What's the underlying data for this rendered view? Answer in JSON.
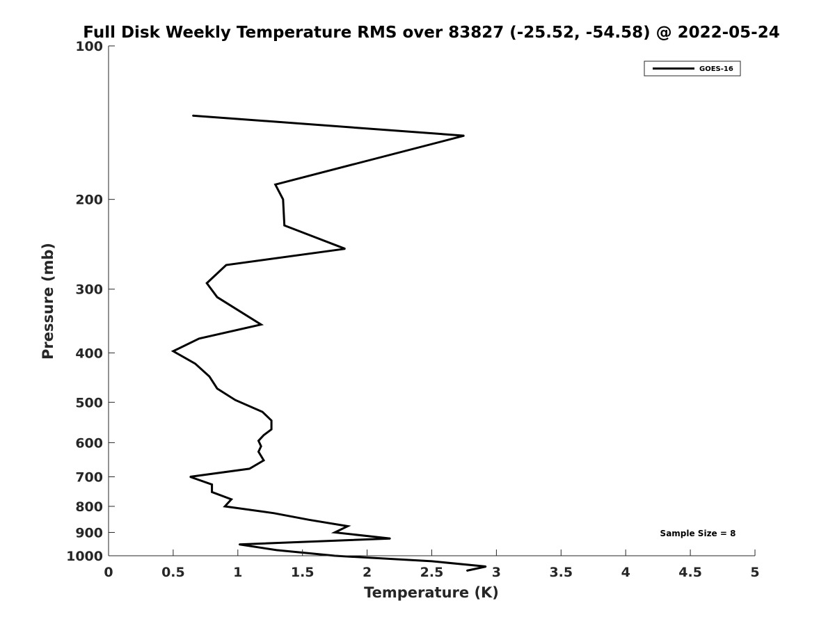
{
  "chart_data": {
    "type": "line",
    "title": "Full Disk Weekly Temperature RMS over 83827 (-25.52, -54.58) @ 2022-05-24",
    "xlabel": "Temperature (K)",
    "ylabel": "Pressure (mb)",
    "xlim": [
      0,
      5
    ],
    "ylim": [
      100,
      1000
    ],
    "yscale": "log",
    "y_reversed": true,
    "xticks": [
      0,
      0.5,
      1,
      1.5,
      2,
      2.5,
      3,
      3.5,
      4,
      4.5,
      5
    ],
    "xtick_labels": [
      "0",
      "0.5",
      "1",
      "1.5",
      "2",
      "2.5",
      "3",
      "3.5",
      "4",
      "4.5",
      "5"
    ],
    "yticks": [
      100,
      200,
      300,
      400,
      500,
      600,
      700,
      800,
      900,
      1000
    ],
    "ytick_labels": [
      "100",
      "200",
      "300",
      "400",
      "500",
      "600",
      "700",
      "800",
      "900",
      "1000"
    ],
    "grid": false,
    "legend_position": "top-right",
    "series": [
      {
        "name": "GOES-16",
        "color": "#000000",
        "x": [
          0.65,
          2.75,
          1.29,
          1.35,
          1.36,
          1.83,
          0.91,
          0.76,
          0.84,
          1.18,
          0.7,
          0.5,
          0.67,
          0.78,
          0.84,
          0.98,
          1.19,
          1.26,
          1.26,
          1.2,
          1.16,
          1.18,
          1.16,
          1.2,
          1.09,
          0.63,
          0.8,
          0.8,
          0.95,
          0.9,
          1.28,
          1.55,
          1.85,
          1.75,
          2.18,
          1.01,
          1.3,
          1.75,
          2.5,
          2.92,
          2.77
        ],
        "y": [
          137,
          150,
          187,
          200,
          225,
          250,
          269,
          292,
          311,
          352,
          375,
          397,
          420,
          445,
          470,
          495,
          522,
          543,
          565,
          580,
          595,
          610,
          625,
          650,
          675,
          700,
          725,
          750,
          775,
          800,
          825,
          850,
          875,
          900,
          925,
          950,
          975,
          1000,
          1025,
          1050,
          1070
        ]
      }
    ],
    "annotations": [
      "Sample Size = 8"
    ]
  }
}
